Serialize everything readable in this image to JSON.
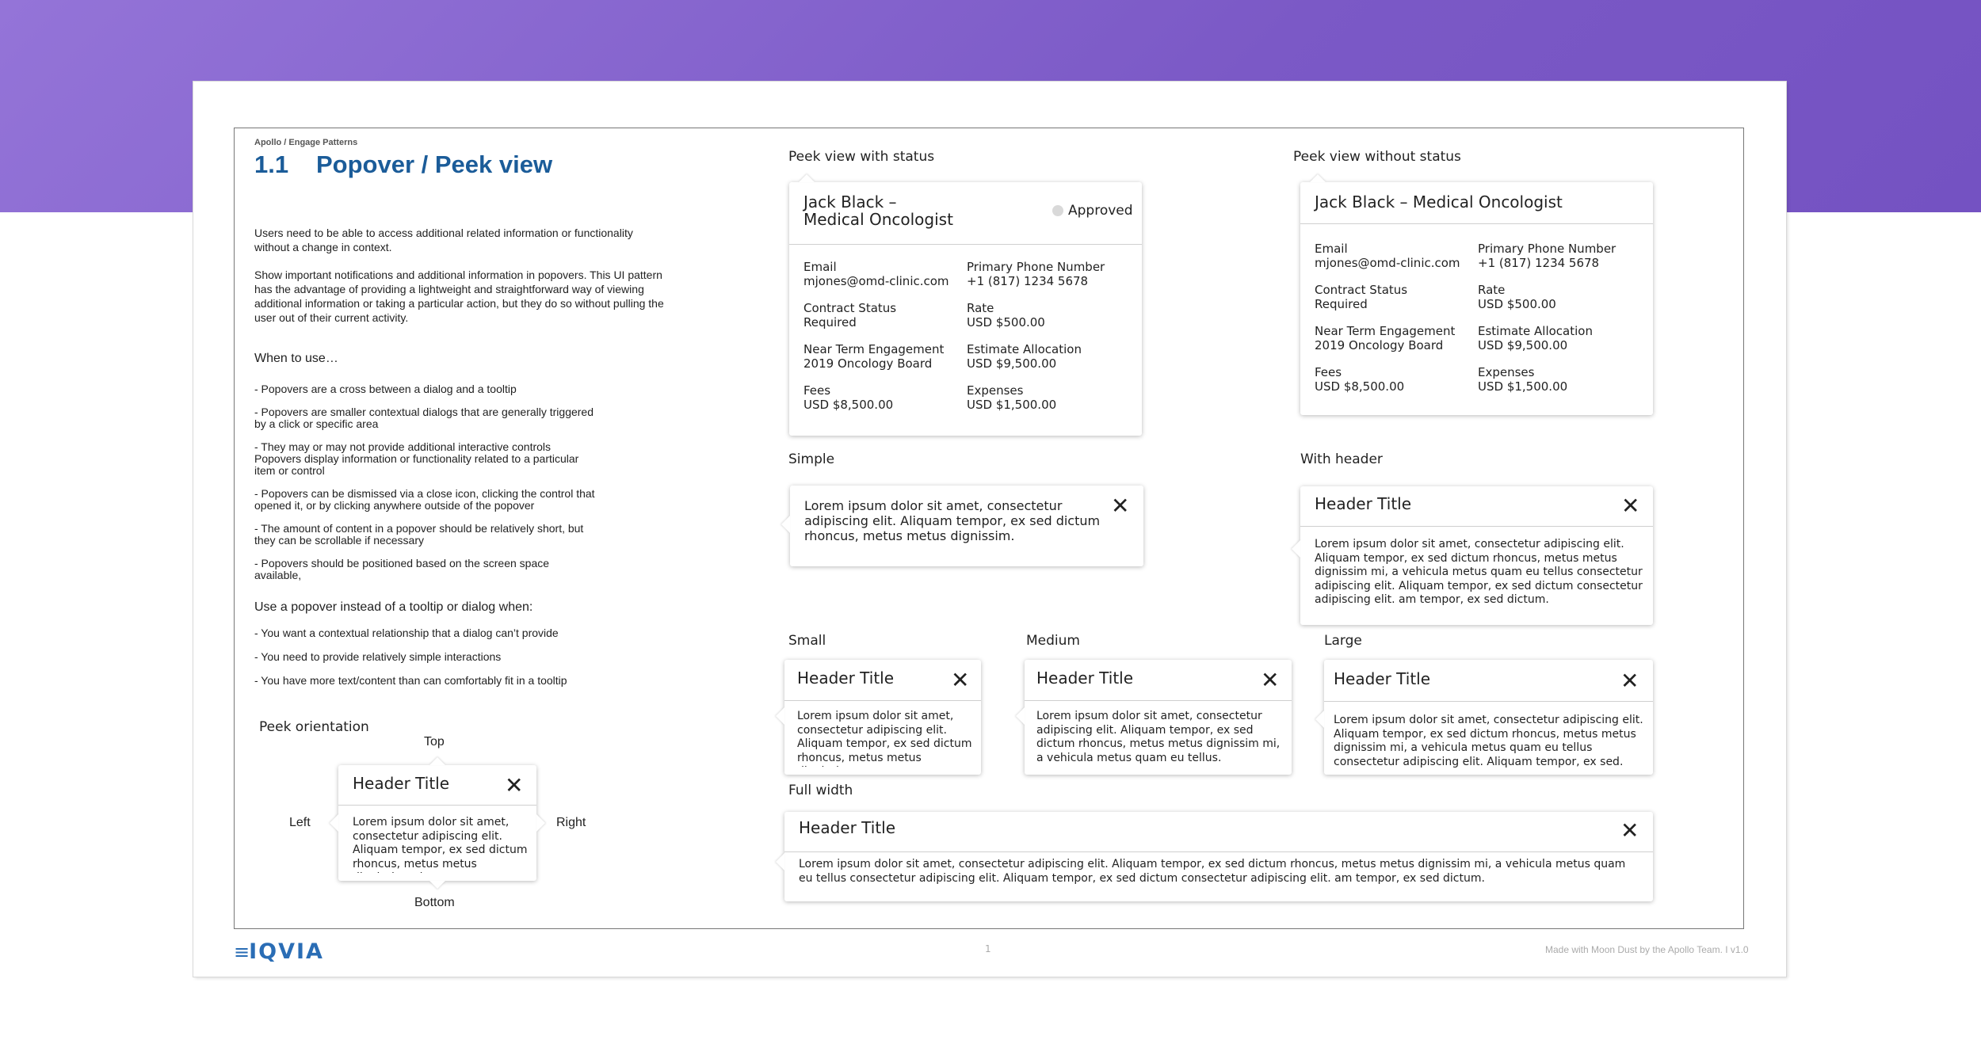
{
  "breadcrumb": "Apollo / Engage Patterns",
  "title": {
    "number": "1.1",
    "text": "Popover / Peek view"
  },
  "intro": [
    "Users need to be able to access additional related information or functionality without a change in context.",
    "Show important notifications and additional information in popovers. This UI pattern has the advantage of providing a lightweight and straightforward way of viewing additional information or taking a particular action, but they do so without pulling the user out of their current activity."
  ],
  "when_heading": "When to use…",
  "when_items": [
    "- Popovers are a cross between a dialog and a tooltip",
    "- Popovers are smaller contextual dialogs that are generally triggered\n  by a click or specific area",
    "- They may or may not provide additional interactive controls\n   Popovers display information or functionality related to a particular\n   item or control",
    "- Popovers can be dismissed via a close icon, clicking the control that\n  opened it, or by clicking anywhere outside of the popover",
    "- The amount of content in a popover should be relatively short, but\n  they can be scrollable if necessary",
    "- Popovers should be positioned based on the screen space\n  available,"
  ],
  "instead_heading": "Use a popover instead of a tooltip or dialog when:",
  "instead_items": [
    "- You want a contextual relationship that a dialog can’t provide",
    "- You need to provide relatively simple interactions",
    "- You have more text/content than can comfortably fit in a tooltip"
  ],
  "orientation": {
    "label": "Peek orientation",
    "top": "Top",
    "left": "Left",
    "right": "Right",
    "bottom": "Bottom",
    "header": "Header Title",
    "body": "Lorem ipsum dolor sit amet, consectetur adipiscing elit. Aliquam tempor, ex sed dictum rhoncus, metus metus dignissim mi."
  },
  "peek_status": {
    "label": "Peek view with status",
    "name_line1": "Jack Black –",
    "name_line2": "Medical Oncologist",
    "status": "Approved",
    "fields": [
      {
        "label": "Email",
        "value": "mjones@omd-clinic.com"
      },
      {
        "label": "Primary Phone Number",
        "value": "+1 (817) 1234 5678"
      },
      {
        "label": "Contract Status",
        "value": "Required"
      },
      {
        "label": "Rate",
        "value": "USD $500.00"
      },
      {
        "label": "Near Term Engagement",
        "value": "2019 Oncology Board"
      },
      {
        "label": "Estimate Allocation",
        "value": "USD $9,500.00"
      },
      {
        "label": "Fees",
        "value": "USD $8,500.00"
      },
      {
        "label": "Expenses",
        "value": "USD $1,500.00"
      }
    ]
  },
  "peek_nostatus": {
    "label": "Peek view without status",
    "name": "Jack Black – Medical Oncologist",
    "fields": [
      {
        "label": "Email",
        "value": "mjones@omd-clinic.com"
      },
      {
        "label": "Primary Phone Number",
        "value": "+1 (817) 1234 5678"
      },
      {
        "label": "Contract Status",
        "value": "Required"
      },
      {
        "label": "Rate",
        "value": "USD $500.00"
      },
      {
        "label": "Near Term Engagement",
        "value": "2019 Oncology Board"
      },
      {
        "label": "Estimate Allocation",
        "value": "USD $9,500.00"
      },
      {
        "label": "Fees",
        "value": "USD $8,500.00"
      },
      {
        "label": "Expenses",
        "value": "USD $1,500.00"
      }
    ]
  },
  "simple": {
    "label": "Simple",
    "body": "Lorem ipsum dolor sit amet, consectetur adipiscing elit. Aliquam tempor, ex sed dictum rhoncus, metus metus dignissim."
  },
  "with_header": {
    "label": "With header",
    "header": "Header Title",
    "body": "Lorem ipsum dolor sit amet, consectetur adipiscing elit. Aliquam tempor, ex sed dictum rhoncus, metus metus dignissim mi, a vehicula metus quam eu tellus consectetur adipiscing elit. Aliquam tempor, ex sed dictum consectetur adipiscing elit. am tempor, ex sed dictum."
  },
  "small": {
    "label": "Small",
    "header": "Header Title",
    "body": "Lorem ipsum dolor sit amet, consectetur adipiscing elit. Aliquam tempor, ex sed dictum rhoncus, metus metus dignissim."
  },
  "medium": {
    "label": "Medium",
    "header": "Header Title",
    "body": "Lorem ipsum dolor sit amet, consectetur adipiscing elit. Aliquam tempor, ex sed dictum rhoncus, metus metus dignissim mi, a vehicula metus quam eu tellus."
  },
  "large": {
    "label": "Large",
    "header": "Header Title",
    "body": "Lorem ipsum dolor sit amet, consectetur adipiscing elit. Aliquam tempor, ex sed dictum rhoncus, metus metus dignissim mi, a vehicula metus quam eu tellus consectetur adipiscing elit. Aliquam tempor, ex sed."
  },
  "full_width": {
    "label": "Full width",
    "header": "Header Title",
    "body": "Lorem ipsum dolor sit amet, consectetur adipiscing elit. Aliquam tempor, ex sed dictum rhoncus, metus metus dignissim mi, a vehicula metus quam eu tellus consectetur adipiscing elit. Aliquam tempor, ex sed dictum consectetur adipiscing elit. am tempor, ex sed dictum."
  },
  "footer": {
    "logo": "IQVIA",
    "page": "1",
    "credit": "Made with Moon Dust by the Apollo Team.  I  v1.0"
  },
  "colors": {
    "band": "#7b59c6",
    "title": "#1b5c99",
    "logo": "#2a6db5"
  },
  "icons": {
    "close": "close-icon",
    "status": "status-dot-icon"
  }
}
